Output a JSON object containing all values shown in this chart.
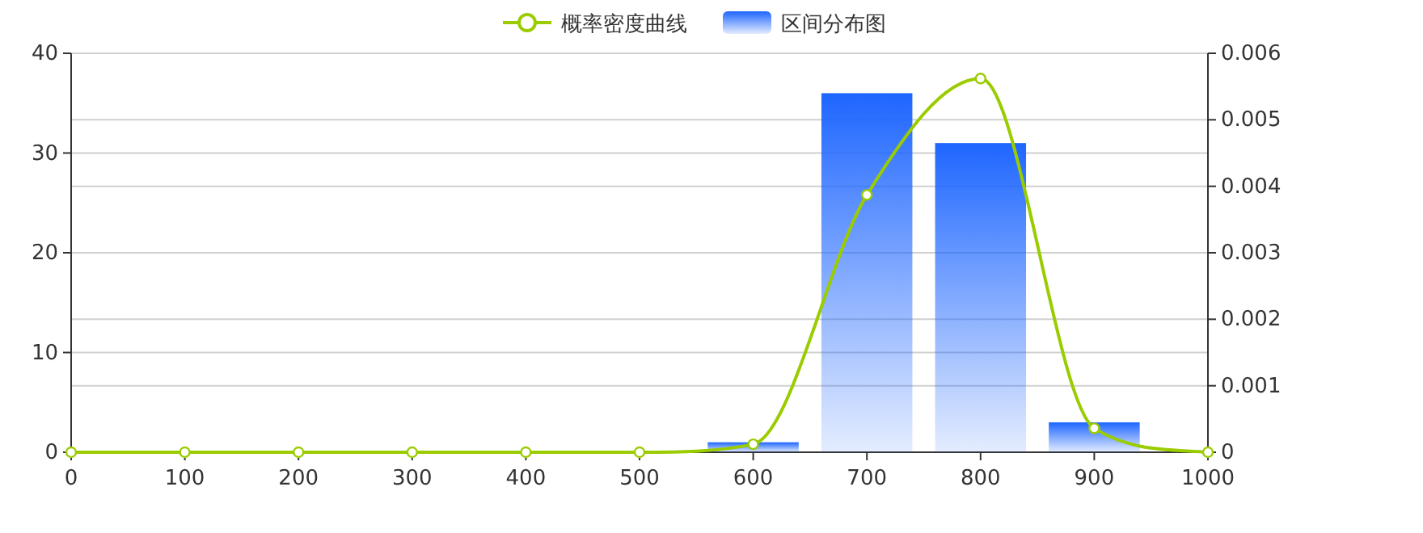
{
  "chart_data": {
    "type": "bar",
    "xlim": [
      0,
      1000
    ],
    "xticks": [
      0,
      100,
      200,
      300,
      400,
      500,
      600,
      700,
      800,
      900,
      1000
    ],
    "ylim": [
      0,
      40
    ],
    "yticks": [
      0,
      10,
      20,
      30,
      40
    ],
    "y2lim": [
      0,
      0.006
    ],
    "y2ticks": [
      0,
      0.001,
      0.002,
      0.003,
      0.004,
      0.005,
      0.006
    ],
    "grid": true,
    "legend": "top",
    "series": [
      {
        "name": "概率密度曲线",
        "type": "line",
        "axis": "y2",
        "color": "#9acc00",
        "marker": "circle",
        "x": [
          0,
          100,
          200,
          300,
          400,
          500,
          600,
          700,
          800,
          900,
          1000
        ],
        "values": [
          0,
          0,
          0,
          0,
          0,
          0,
          0.00012,
          0.00387,
          0.00562,
          0.00036,
          0
        ]
      },
      {
        "name": "区间分布图",
        "color": "#1e66ff",
        "x": [
          600,
          700,
          800,
          900
        ],
        "values": [
          1,
          36,
          31,
          3
        ]
      }
    ]
  }
}
